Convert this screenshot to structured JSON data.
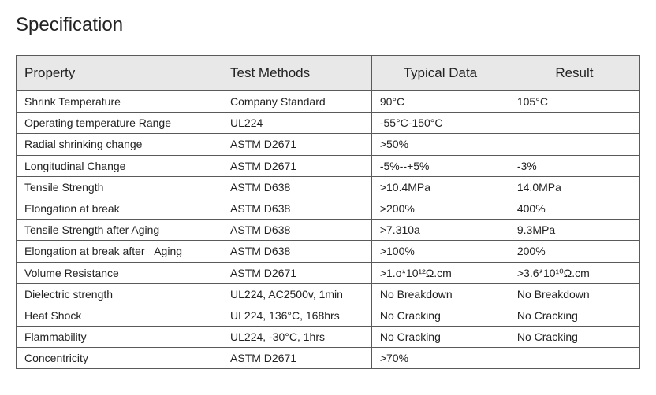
{
  "title": "Specification",
  "table": {
    "columns": [
      "Property",
      "Test Methods",
      "Typical Data",
      "Result"
    ],
    "rows": [
      {
        "property": "Shrink Temperature",
        "method": "Company Standard",
        "typical": "90°C",
        "result": "105°C"
      },
      {
        "property": "Operating temperature Range",
        "method": "UL224",
        "typical": "-55°C-150°C",
        "result": ""
      },
      {
        "property": "Radial shrinking change",
        "method": "ASTM D2671",
        "typical": ">50%",
        "result": ""
      },
      {
        "property": "Longitudinal Change",
        "method": "ASTM D2671",
        "typical": "-5%--+5%",
        "result": "-3%"
      },
      {
        "property": "Tensile Strength",
        "method": "ASTM D638",
        "typical": ">10.4MPa",
        "result": "14.0MPa"
      },
      {
        "property": "Elongation at break",
        "method": "ASTM D638",
        "typical": ">200%",
        "result": "400%"
      },
      {
        "property": "Tensile Strength after Aging",
        "method": "ASTM D638",
        "typical": ">7.310a",
        "result": "9.3MPa"
      },
      {
        "property": "Elongation at break after _Aging",
        "method": "ASTM D638",
        "typical": ">100%",
        "result": "200%"
      },
      {
        "property": "Volume Resistance",
        "method": "ASTM D2671",
        "typical": ">1.o*10¹²Ω.cm",
        "result": ">3.6*10¹⁰Ω.cm"
      },
      {
        "property": "Dielectric strength",
        "method": "UL224, AC2500v, 1min",
        "typical": "No Breakdown",
        "result": "No Breakdown"
      },
      {
        "property": "Heat Shock",
        "method": "UL224, 136°C, 168hrs",
        "typical": "No Cracking",
        "result": "No Cracking"
      },
      {
        "property": "Flammability",
        "method": "UL224, -30°C, 1hrs",
        "typical": "No Cracking",
        "result": "No Cracking"
      },
      {
        "property": "Concentricity",
        "method": "ASTM D2671",
        "typical": ">70%",
        "result": ""
      }
    ]
  }
}
